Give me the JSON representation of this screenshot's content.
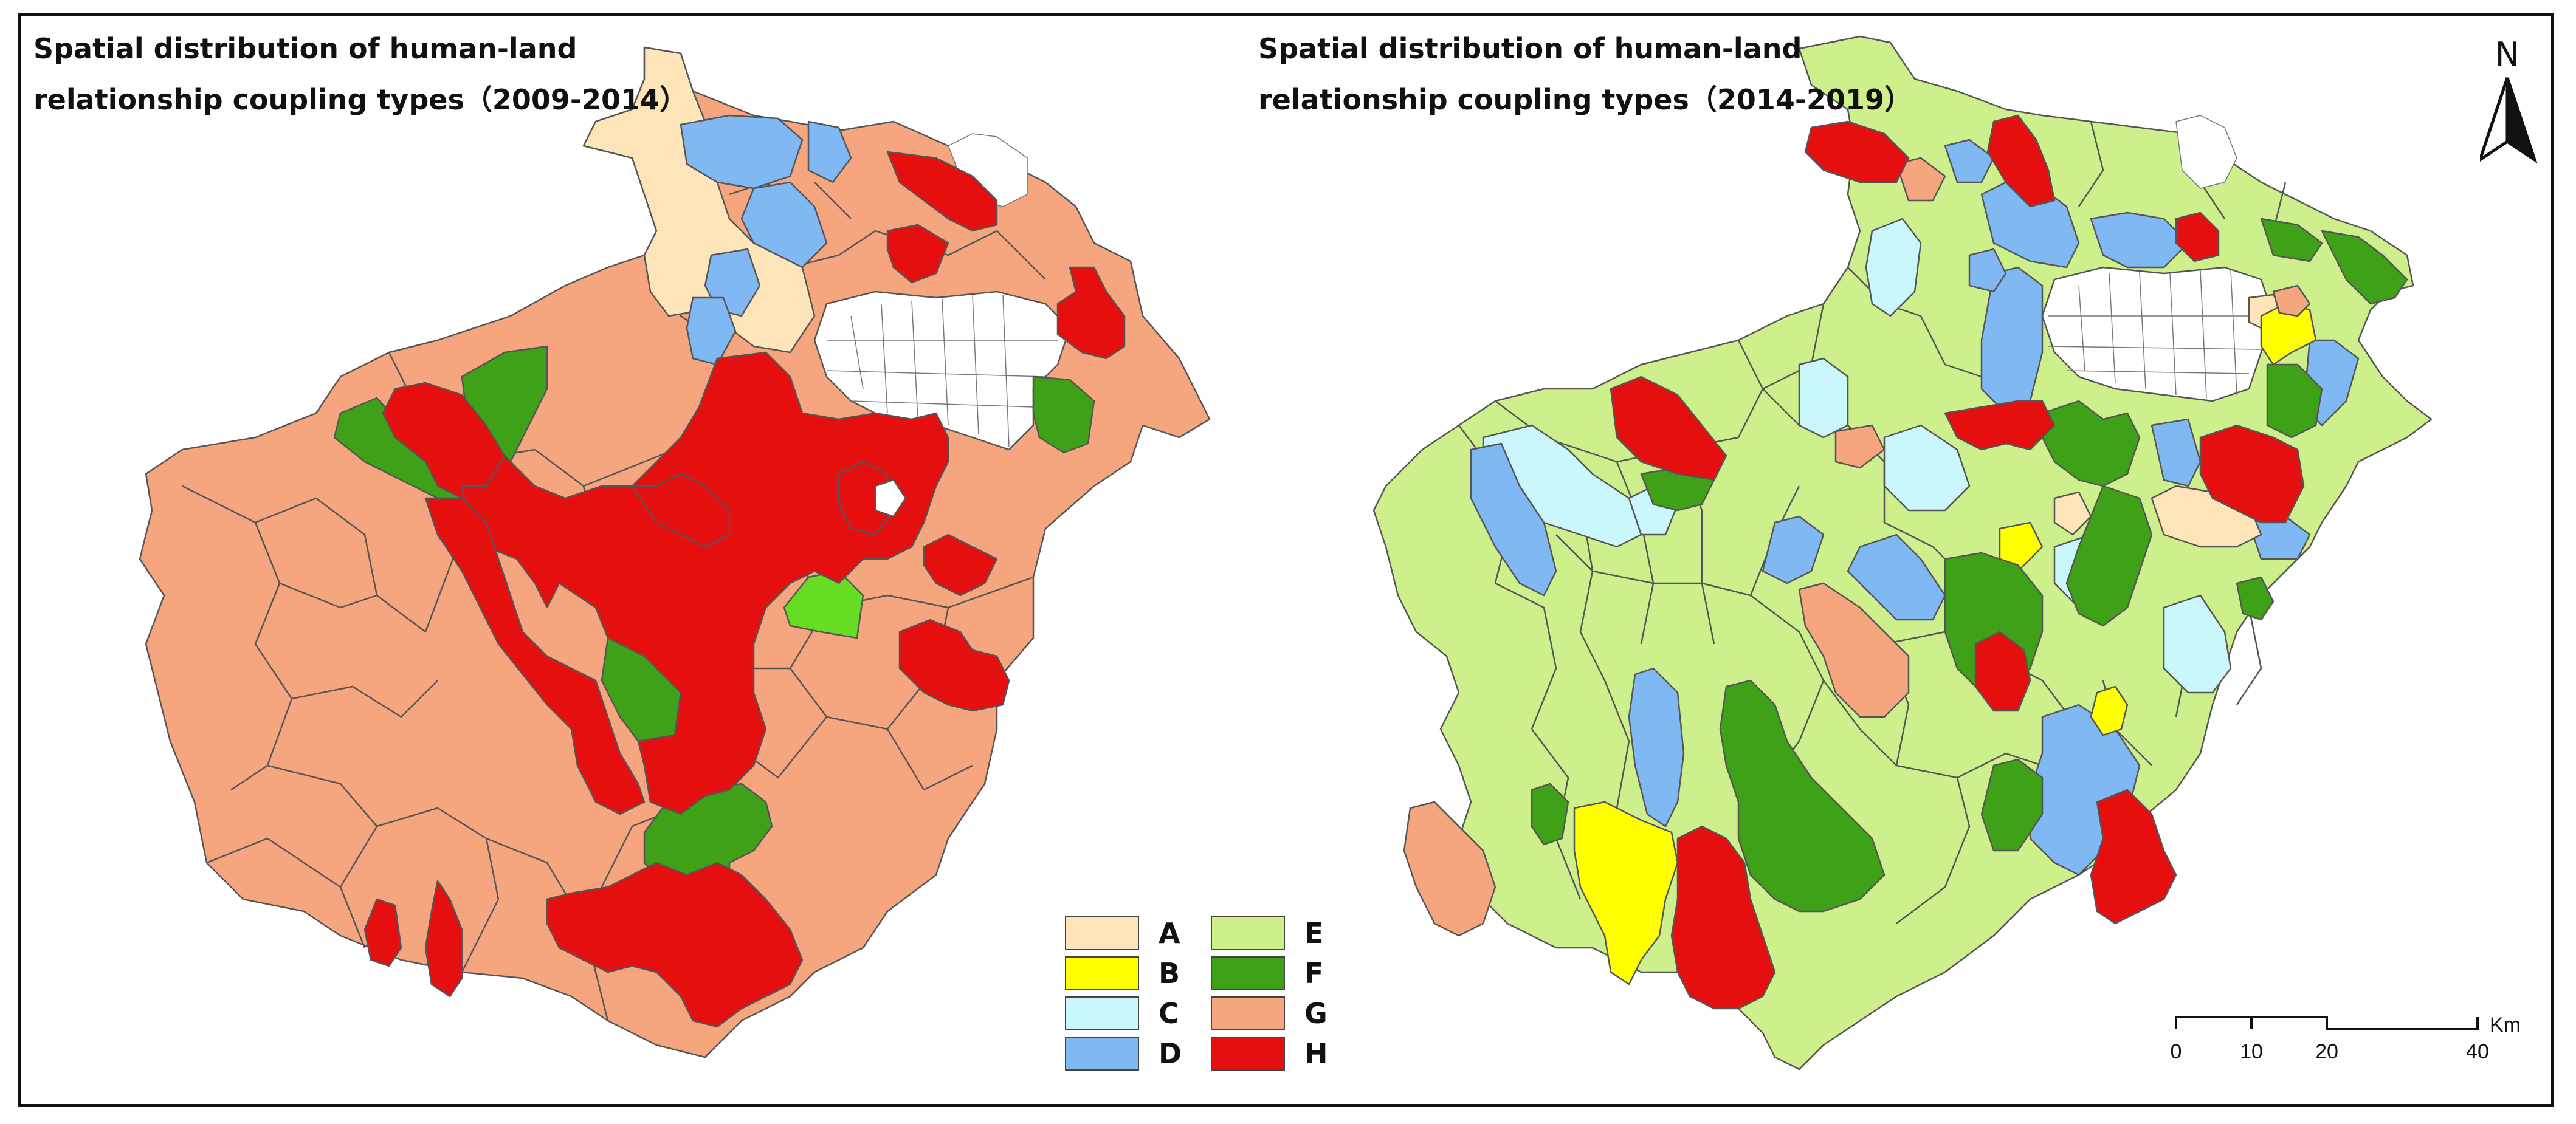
{
  "left_map": {
    "title_line1": "Spatial distribution of human-land",
    "title_line2": "relationship coupling types（2009-2014）"
  },
  "right_map": {
    "title_line1": "Spatial distribution of human-land",
    "title_line2": "relationship coupling types（2014-2019）"
  },
  "legend": {
    "items": [
      {
        "label": "A",
        "color": "#fde5b9"
      },
      {
        "label": "B",
        "color": "#ffff00"
      },
      {
        "label": "C",
        "color": "#c9f7fb"
      },
      {
        "label": "D",
        "color": "#7fb8f2"
      },
      {
        "label": "E",
        "color": "#cdef8c"
      },
      {
        "label": "F",
        "color": "#3ea118"
      },
      {
        "label": "G",
        "color": "#f5a67f"
      },
      {
        "label": "H",
        "color": "#e60f0f"
      }
    ]
  },
  "north_arrow": {
    "label": "N",
    "icon": "north-arrow-icon"
  },
  "scale_bar": {
    "ticks": [
      "0",
      "10",
      "20",
      "40"
    ],
    "tick_values": [
      0,
      10,
      20,
      40
    ],
    "unit": "Km"
  }
}
